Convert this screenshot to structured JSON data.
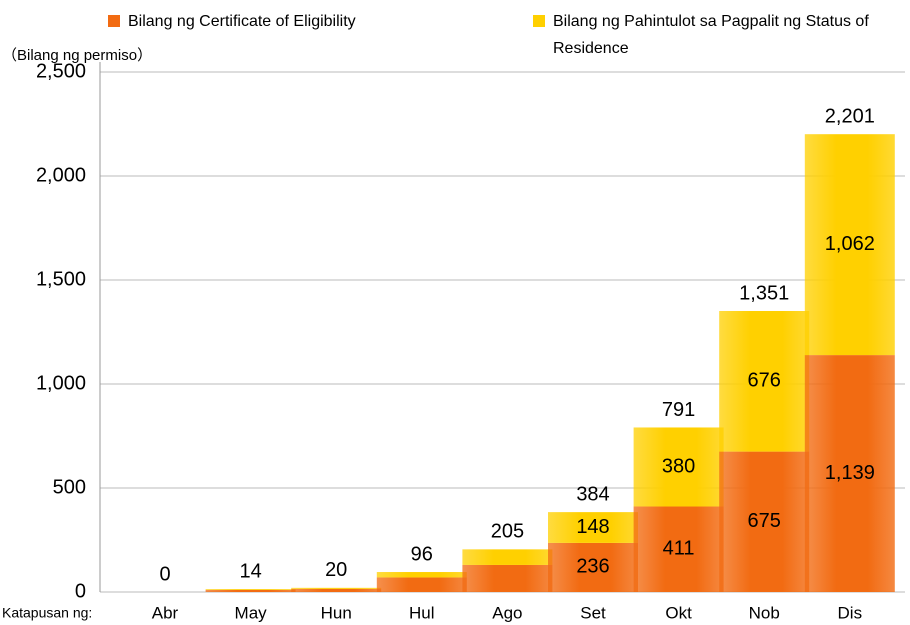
{
  "chart_data": {
    "type": "stacked_bar",
    "unit_label": "（Bilang ng permiso）",
    "x_prefix": "Katapusan ng:",
    "categories": [
      "Abr",
      "May",
      "Hun",
      "Hul",
      "Ago",
      "Set",
      "Okt",
      "Nob",
      "Dis"
    ],
    "series": [
      {
        "name": "Bilang ng Certificate of Eligibility",
        "color": "#f26b12",
        "values": [
          0,
          10,
          15,
          70,
          130,
          236,
          411,
          675,
          1139
        ],
        "value_labels": [
          null,
          null,
          null,
          null,
          null,
          "236",
          "411",
          "675",
          "1,139"
        ]
      },
      {
        "name": "Bilang ng Pahintulot sa Pagpalit ng Status of Residence",
        "color": "#ffd000",
        "values": [
          0,
          4,
          5,
          26,
          75,
          148,
          380,
          676,
          1062
        ],
        "value_labels": [
          null,
          null,
          null,
          null,
          null,
          "148",
          "380",
          "676",
          "1,062"
        ]
      }
    ],
    "totals": [
      0,
      14,
      20,
      96,
      205,
      384,
      791,
      1351,
      2201
    ],
    "total_labels": [
      "0",
      "14",
      "20",
      "96",
      "205",
      "384",
      "791",
      "1,351",
      "2,201"
    ],
    "ylim": [
      0,
      2500
    ],
    "yticks": [
      0,
      500,
      {
        "value": 1000,
        "label": "1,000"
      },
      {
        "value": 1500,
        "label": "1,500"
      },
      {
        "value": 2000,
        "label": "2,000"
      },
      {
        "value": 2500,
        "label": "2,500"
      }
    ],
    "grid": true
  }
}
